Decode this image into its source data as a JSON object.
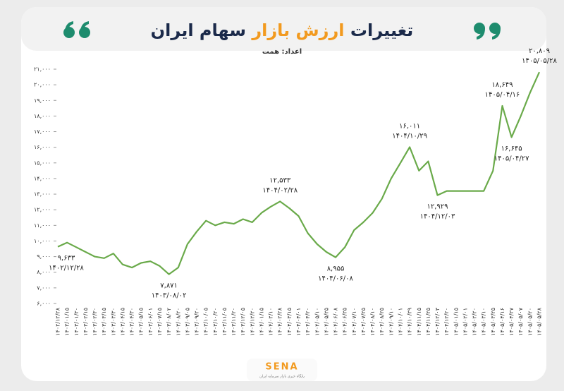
{
  "chart_data": {
    "type": "line",
    "title": [
      "تغییرات",
      "ارزش بازار",
      "سهام ایران"
    ],
    "subtitle": "اعداد: همت",
    "categories": [
      "۱۴۰۲/۱۲/۲۸",
      "۱۴۰۳/۰۱/۱۵",
      "۱۴۰۳/۰۱/۳۰",
      "۱۴۰۳/۰۲/۱۵",
      "۱۴۰۳/۰۲/۳۰",
      "۱۴۰۳/۰۳/۱۵",
      "۱۴۰۳/۰۳/۳۰",
      "۱۴۰۳/۰۴/۱۵",
      "۱۴۰۳/۰۴/۳۰",
      "۱۴۰۳/۰۵/۱۵",
      "۱۴۰۳/۰۶/۰۱",
      "۱۴۰۳/۰۷/۱۵",
      "۱۴۰۳/۰۸/۰۲",
      "۱۴۰۳/۰۸/۲۰",
      "۱۴۰۳/۰۹/۰۵",
      "۱۴۰۳/۰۹/۲۰",
      "۱۴۰۳/۱۰/۰۵",
      "۱۴۰۳/۱۰/۲۰",
      "۱۴۰۳/۱۱/۰۵",
      "۱۴۰۳/۱۱/۲۰",
      "۱۴۰۳/۱۲/۰۵",
      "۱۴۰۳/۱۲/۲۰",
      "۱۴۰۴/۰۱/۱۵",
      "۱۴۰۴/۰۲/۱۰",
      "۱۴۰۴/۰۲/۲۸",
      "۱۴۰۴/۰۳/۱۵",
      "۱۴۰۴/۰۴/۰۱",
      "۱۴۰۴/۰۴/۲۰",
      "۱۴۰۴/۰۵/۱۰",
      "۱۴۰۴/۰۵/۲۵",
      "۱۴۰۴/۰۶/۰۸",
      "۱۴۰۴/۰۶/۲۵",
      "۱۴۰۴/۰۷/۱۰",
      "۱۴۰۴/۰۷/۲۵",
      "۱۴۰۴/۰۸/۱۰",
      "۱۴۰۴/۰۸/۲۵",
      "۱۴۰۴/۰۹/۱۰",
      "۱۴۰۴/۱۰/۰۱",
      "۱۴۰۴/۱۰/۲۹",
      "۱۴۰۴/۱۱/۱۵",
      "۱۴۰۴/۱۱/۲۵",
      "۱۴۰۴/۱۲/۰۳",
      "۱۴۰۴/۱۲/۲۰",
      "۱۴۰۵/۰۱/۱۵",
      "۱۴۰۵/۰۲/۰۱",
      "۱۴۰۵/۰۲/۲۰",
      "۱۴۰۵/۰۳/۱۰",
      "۱۴۰۵/۰۳/۲۵",
      "۱۴۰۵/۰۴/۱۶",
      "۱۴۰۵/۰۴/۲۷",
      "۱۴۰۵/۰۵/۰۷",
      "۱۴۰۵/۰۵/۲۰",
      "۱۴۰۵/۰۵/۲۸"
    ],
    "series": [
      {
        "color": "#6aaa4a",
        "values": [
          9633,
          9900,
          9600,
          9300,
          9000,
          8900,
          9200,
          8500,
          8300,
          8600,
          8700,
          8400,
          7871,
          8300,
          9800,
          10600,
          11300,
          11000,
          11200,
          11100,
          11400,
          11200,
          11800,
          12200,
          12533,
          12100,
          11600,
          10500,
          9800,
          9300,
          8955,
          9600,
          10700,
          11200,
          11800,
          12700,
          14000,
          15000,
          16011,
          14500,
          15100,
          12929,
          13200,
          13200,
          13200,
          13200,
          13200,
          14500,
          18649,
          16645,
          18000,
          19500,
          20809
        ],
        "value_labels": [
          "۹,۶۳۳",
          null,
          null,
          null,
          null,
          null,
          null,
          null,
          null,
          null,
          null,
          null,
          "۷,۸۷۱",
          null,
          null,
          null,
          null,
          null,
          null,
          null,
          null,
          null,
          null,
          null,
          "۱۲,۵۳۳",
          null,
          null,
          null,
          null,
          null,
          "۸,۹۵۵",
          null,
          null,
          null,
          null,
          null,
          null,
          null,
          "۱۶,۰۱۱",
          null,
          null,
          "۱۲,۹۲۹",
          null,
          null,
          null,
          null,
          null,
          null,
          "۱۸,۶۴۹",
          "۱۶,۶۴۵",
          null,
          null,
          "۲۰,۸۰۹"
        ]
      }
    ],
    "ylim": [
      6000,
      21000
    ],
    "yticks": [
      {
        "value": 6000,
        "label": "۶,۰۰۰"
      },
      {
        "value": 7000,
        "label": "۷,۰۰۰"
      },
      {
        "value": 8000,
        "label": "۸,۰۰۰"
      },
      {
        "value": 9000,
        "label": "۹,۰۰۰"
      },
      {
        "value": 10000,
        "label": "۱۰,۰۰۰"
      },
      {
        "value": 11000,
        "label": "۱۱,۰۰۰"
      },
      {
        "value": 12000,
        "label": "۱۲,۰۰۰"
      },
      {
        "value": 13000,
        "label": "۱۳,۰۰۰"
      },
      {
        "value": 14000,
        "label": "۱۴,۰۰۰"
      },
      {
        "value": 15000,
        "label": "۱۵,۰۰۰"
      },
      {
        "value": 16000,
        "label": "۱۶,۰۰۰"
      },
      {
        "value": 17000,
        "label": "۱۷,۰۰۰"
      },
      {
        "value": 18000,
        "label": "۱۸,۰۰۰"
      },
      {
        "value": 19000,
        "label": "۱۹,۰۰۰"
      },
      {
        "value": 20000,
        "label": "۲۰,۰۰۰"
      },
      {
        "value": 21000,
        "label": "۲۱,۰۰۰"
      }
    ],
    "grid": false
  },
  "footer": {
    "brand": "SENA",
    "tagline": "پایگاه خبری بازار سرمایه ایران"
  }
}
